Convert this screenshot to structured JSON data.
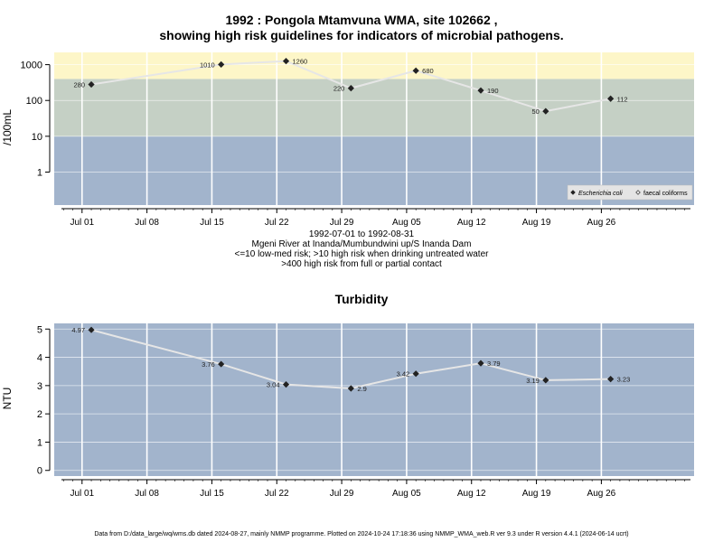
{
  "colors": {
    "panel_bg": "#a2b4cc",
    "band_low": "#a2b4cc",
    "band_mid": "#c5d0c5",
    "band_high": "#fdf6c8",
    "grid": "#ffffff",
    "line": "#e6e6e6",
    "point": "#222222"
  },
  "chart_data": [
    {
      "type": "line",
      "title_line1": "1992 : Pongola Mtamvuna WMA, site 102662 ,",
      "title_line2": "showing high risk guidelines for indicators of microbial pathogens.",
      "ylabel": "/100mL",
      "yscale": "log",
      "ylim": [
        0.12,
        2200
      ],
      "yticks": [
        1,
        10,
        100,
        1000
      ],
      "ytick_labels": [
        "1",
        "10",
        "100",
        "1000"
      ],
      "xlim": [
        "1992-06-28",
        "1992-09-05"
      ],
      "xticks": [
        "1992-07-01",
        "1992-07-08",
        "1992-07-15",
        "1992-07-22",
        "1992-07-29",
        "1992-08-05",
        "1992-08-12",
        "1992-08-19",
        "1992-08-26"
      ],
      "xtick_labels": [
        "Jul 01",
        "Jul 08",
        "Jul 15",
        "Jul 22",
        "Jul 29",
        "Aug 05",
        "Aug 12",
        "Aug 19",
        "Aug 26"
      ],
      "bands": [
        {
          "from": 0.12,
          "to": 10,
          "color_key": "band_low"
        },
        {
          "from": 10,
          "to": 400,
          "color_key": "band_mid"
        },
        {
          "from": 400,
          "to": 2200,
          "color_key": "band_high"
        }
      ],
      "grid": true,
      "legend_position": "bottom-right",
      "legend": [
        "Escherichia coli",
        "faecal coliforms"
      ],
      "series": [
        {
          "name": "Escherichia coli",
          "x": [
            "1992-07-02",
            "1992-07-16",
            "1992-07-23",
            "1992-07-30",
            "1992-08-06",
            "1992-08-13",
            "1992-08-20",
            "1992-08-27"
          ],
          "y": [
            280,
            1010,
            1260,
            220,
            680,
            190,
            50,
            112
          ],
          "labels": [
            "280",
            "1010",
            "1260",
            "220",
            "680",
            "190",
            "50",
            "112"
          ],
          "label_side": [
            "left",
            "left",
            "right",
            "left",
            "right",
            "right",
            "left",
            "right"
          ]
        }
      ],
      "caption_lines": [
        "1992-07-01 to 1992-08-31",
        "Mgeni River at Inanda/Mumbundwini up/S Inanda Dam",
        "<=10 low-med risk; >10 high risk when drinking untreated water",
        ">400 high risk from full or partial contact"
      ]
    },
    {
      "type": "line",
      "title": "Turbidity",
      "ylabel": "NTU",
      "yscale": "linear",
      "ylim": [
        -0.2,
        5.2
      ],
      "yticks": [
        0,
        1,
        2,
        3,
        4,
        5
      ],
      "ytick_labels": [
        "0",
        "1",
        "2",
        "3",
        "4",
        "5"
      ],
      "xlim": [
        "1992-06-28",
        "1992-09-05"
      ],
      "xticks": [
        "1992-07-01",
        "1992-07-08",
        "1992-07-15",
        "1992-07-22",
        "1992-07-29",
        "1992-08-05",
        "1992-08-12",
        "1992-08-19",
        "1992-08-26"
      ],
      "xtick_labels": [
        "Jul 01",
        "Jul 08",
        "Jul 15",
        "Jul 22",
        "Jul 29",
        "Aug 05",
        "Aug 12",
        "Aug 19",
        "Aug 26"
      ],
      "grid": true,
      "series": [
        {
          "x": [
            "1992-07-02",
            "1992-07-16",
            "1992-07-23",
            "1992-07-30",
            "1992-08-06",
            "1992-08-13",
            "1992-08-20",
            "1992-08-27"
          ],
          "y": [
            4.97,
            3.76,
            3.04,
            2.9,
            3.42,
            3.79,
            3.19,
            3.23
          ],
          "labels": [
            "4.97",
            "3.76",
            "3.04",
            "2.9",
            "3.42",
            "3.79",
            "3.19",
            "3.23"
          ],
          "label_side": [
            "left",
            "left",
            "left",
            "right",
            "left",
            "right",
            "left",
            "right"
          ]
        }
      ]
    }
  ],
  "footer": "Data from D:/data_large/wq/wms.db dated 2024-08-27, mainly NMMP programme. Plotted on 2024-10-24 17:18:36 using NMMP_WMA_web.R ver 9.3 under R version 4.4.1 (2024-06-14 ucrt)"
}
